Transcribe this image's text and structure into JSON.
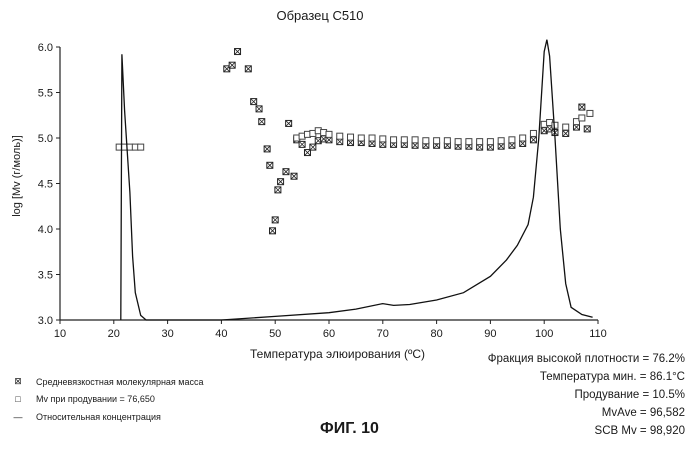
{
  "chart_data": {
    "type": "scatter",
    "title": "Образец  C510",
    "xlabel": "Температура элюирования (ºC)",
    "ylabel": "log [Mv (г/моль)]",
    "xlim": [
      10,
      110
    ],
    "ylim": [
      3.0,
      6.0
    ],
    "xticks": [
      "10",
      "20",
      "30",
      "40",
      "50",
      "60",
      "70",
      "80",
      "90",
      "100",
      "110"
    ],
    "yticks": [
      "3.0",
      "3.5",
      "4.0",
      "4.5",
      "5.0",
      "5.5",
      "6.0"
    ],
    "grid": false,
    "series": [
      {
        "name": "Средневязкостная молекулярная масса",
        "style": "crossed-square",
        "points": [
          [
            41,
            5.76
          ],
          [
            42,
            5.8
          ],
          [
            43,
            5.95
          ],
          [
            45,
            5.76
          ],
          [
            46,
            5.4
          ],
          [
            47,
            5.32
          ],
          [
            47.5,
            5.18
          ],
          [
            48.5,
            4.88
          ],
          [
            49,
            4.7
          ],
          [
            49.5,
            3.98
          ],
          [
            50,
            4.1
          ],
          [
            50.5,
            4.43
          ],
          [
            51,
            4.52
          ],
          [
            52,
            4.63
          ],
          [
            52.5,
            5.16
          ],
          [
            53.5,
            4.58
          ],
          [
            54,
            4.98
          ],
          [
            55,
            4.93
          ],
          [
            56,
            4.84
          ],
          [
            57,
            4.9
          ],
          [
            58,
            4.97
          ],
          [
            59,
            4.99
          ],
          [
            60,
            4.98
          ],
          [
            62,
            4.96
          ],
          [
            64,
            4.95
          ],
          [
            66,
            4.95
          ],
          [
            68,
            4.94
          ],
          [
            70,
            4.93
          ],
          [
            72,
            4.93
          ],
          [
            74,
            4.93
          ],
          [
            76,
            4.92
          ],
          [
            78,
            4.92
          ],
          [
            80,
            4.92
          ],
          [
            82,
            4.92
          ],
          [
            84,
            4.91
          ],
          [
            86,
            4.91
          ],
          [
            88,
            4.9
          ],
          [
            90,
            4.9
          ],
          [
            92,
            4.91
          ],
          [
            94,
            4.92
          ],
          [
            96,
            4.94
          ],
          [
            98,
            4.98
          ],
          [
            100,
            5.08
          ],
          [
            101,
            5.1
          ],
          [
            102,
            5.06
          ],
          [
            104,
            5.05
          ],
          [
            106,
            5.12
          ],
          [
            107,
            5.34
          ],
          [
            108,
            5.1
          ]
        ]
      },
      {
        "name": "Mv при продувании = 76,650",
        "style": "square",
        "points": [
          [
            21,
            4.9
          ],
          [
            22,
            4.9
          ],
          [
            23,
            4.9
          ],
          [
            24,
            4.9
          ],
          [
            25,
            4.9
          ],
          [
            54,
            5.0
          ],
          [
            55,
            5.02
          ],
          [
            56,
            5.04
          ],
          [
            57,
            5.05
          ],
          [
            58,
            5.08
          ],
          [
            59,
            5.06
          ],
          [
            60,
            5.04
          ],
          [
            62,
            5.02
          ],
          [
            64,
            5.01
          ],
          [
            66,
            5.0
          ],
          [
            68,
            5.0
          ],
          [
            70,
            4.99
          ],
          [
            72,
            4.98
          ],
          [
            74,
            4.98
          ],
          [
            76,
            4.98
          ],
          [
            78,
            4.97
          ],
          [
            80,
            4.97
          ],
          [
            82,
            4.97
          ],
          [
            84,
            4.96
          ],
          [
            86,
            4.96
          ],
          [
            88,
            4.96
          ],
          [
            90,
            4.96
          ],
          [
            92,
            4.97
          ],
          [
            94,
            4.98
          ],
          [
            96,
            5.0
          ],
          [
            98,
            5.05
          ],
          [
            100,
            5.15
          ],
          [
            101,
            5.17
          ],
          [
            102,
            5.14
          ],
          [
            104,
            5.12
          ],
          [
            106,
            5.18
          ],
          [
            107,
            5.22
          ],
          [
            108.5,
            5.27
          ]
        ]
      },
      {
        "name": "Относительная концентрация",
        "style": "line",
        "points": [
          [
            21.3,
            3.0
          ],
          [
            21.5,
            5.92
          ],
          [
            22,
            5.3
          ],
          [
            23,
            4.4
          ],
          [
            23.5,
            3.7
          ],
          [
            24,
            3.3
          ],
          [
            25,
            3.05
          ],
          [
            26,
            3.0
          ],
          [
            40,
            3.0
          ],
          [
            50,
            3.04
          ],
          [
            60,
            3.08
          ],
          [
            65,
            3.12
          ],
          [
            70,
            3.18
          ],
          [
            72,
            3.16
          ],
          [
            75,
            3.17
          ],
          [
            80,
            3.22
          ],
          [
            85,
            3.3
          ],
          [
            90,
            3.48
          ],
          [
            93,
            3.66
          ],
          [
            95,
            3.82
          ],
          [
            97,
            4.05
          ],
          [
            98,
            4.35
          ],
          [
            99,
            5.0
          ],
          [
            100,
            5.95
          ],
          [
            100.5,
            6.08
          ],
          [
            101,
            5.9
          ],
          [
            102,
            5.0
          ],
          [
            103,
            4.0
          ],
          [
            104,
            3.4
          ],
          [
            105,
            3.14
          ],
          [
            107,
            3.06
          ],
          [
            109,
            3.03
          ]
        ]
      }
    ],
    "legend": [
      {
        "marker": "⊠",
        "label": "Средневязкостная молекулярная масса"
      },
      {
        "marker": "□",
        "label": "Mv  при продувании  = 76,650"
      },
      {
        "marker": "—",
        "label": "Относительная концентрация"
      }
    ]
  },
  "stats": [
    "Фракция высокой плотности = 76.2%",
    "Температура мин. = 86.1°C",
    "Продувание = 10.5%",
    "MvAve = 96,582",
    "SCB Mv = 98,920"
  ],
  "figure_caption": "ФИГ. 10"
}
